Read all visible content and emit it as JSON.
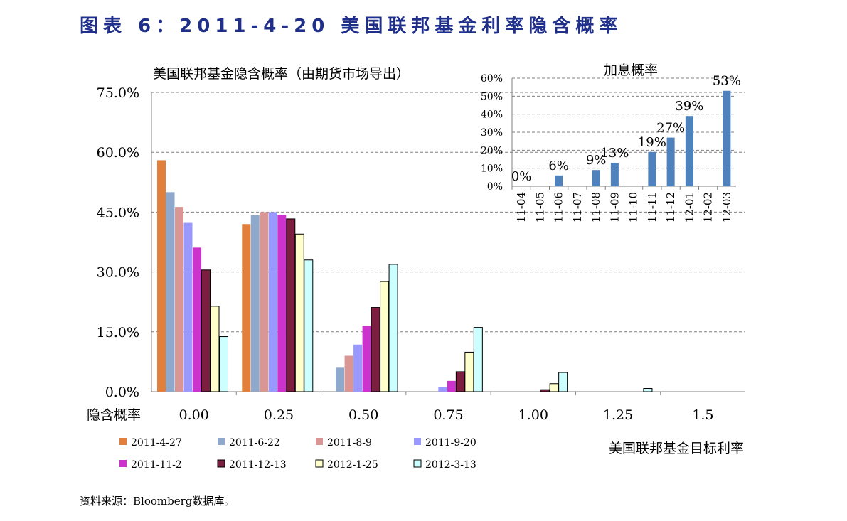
{
  "figure_title": "图表 6：2011-4-20 美国联邦基金利率隐含概率",
  "source_note": "资料来源：Bloomberg数据库。",
  "colors": {
    "title": "#1f2f8a",
    "series": [
      "#e0803c",
      "#8ea9cc",
      "#d99694",
      "#9999ff",
      "#cc33cc",
      "#7b1e3f",
      "#ffffcc",
      "#ccffff"
    ],
    "inset_bar": "#4f81bd"
  },
  "chart_data": [
    {
      "type": "bar",
      "title": "美国联邦基金隐含概率（由期货市场导出）",
      "xlabel": "美国联邦基金目标利率",
      "x_axis_prefix_label": "隐含概率",
      "categories": [
        "0.00",
        "0.25",
        "0.50",
        "0.75",
        "1.00",
        "1.25",
        "1.5"
      ],
      "ylim": [
        0,
        75
      ],
      "yticks": [
        "0.0%",
        "15.0%",
        "30.0%",
        "45.0%",
        "60.0%",
        "75.0%"
      ],
      "grid": true,
      "legend_position": "bottom",
      "series": [
        {
          "name": "2011-4-27",
          "values": [
            58.0,
            42.0,
            0,
            0,
            0,
            0,
            0
          ]
        },
        {
          "name": "2011-6-22",
          "values": [
            50.0,
            44.2,
            6.0,
            0,
            0,
            0,
            0
          ]
        },
        {
          "name": "2011-8-9",
          "values": [
            46.3,
            45.0,
            9.0,
            0,
            0,
            0,
            0
          ]
        },
        {
          "name": "2011-9-20",
          "values": [
            42.3,
            45.0,
            11.8,
            1.2,
            0,
            0,
            0
          ]
        },
        {
          "name": "2011-11-2",
          "values": [
            36.1,
            44.3,
            16.5,
            2.7,
            0,
            0,
            0
          ]
        },
        {
          "name": "2011-12-13",
          "values": [
            30.5,
            43.3,
            21.1,
            5.0,
            0.5,
            0,
            0
          ]
        },
        {
          "name": "2012-1-25",
          "values": [
            21.4,
            39.5,
            27.6,
            9.9,
            2.0,
            0,
            0
          ]
        },
        {
          "name": "2012-3-13",
          "values": [
            13.8,
            33.0,
            31.9,
            16.1,
            4.8,
            0.8,
            0
          ]
        }
      ]
    },
    {
      "type": "bar",
      "title": "加息概率",
      "categories": [
        "11-04",
        "11-05",
        "11-06",
        "11-07",
        "11-08",
        "11-09",
        "11-10",
        "11-11",
        "11-12",
        "12-01",
        "12-02",
        "12-03"
      ],
      "values": [
        0,
        0,
        6,
        0,
        9,
        13,
        0,
        19,
        27,
        39,
        0,
        53
      ],
      "data_labels": [
        "0%",
        "",
        "6%",
        "",
        "9%",
        "13%",
        "",
        "19%",
        "27%",
        "39%",
        "",
        "53%"
      ],
      "ylim": [
        0,
        60
      ],
      "yticks": [
        "0%",
        "10%",
        "20%",
        "30%",
        "40%",
        "50%",
        "60%"
      ],
      "grid": true
    }
  ]
}
